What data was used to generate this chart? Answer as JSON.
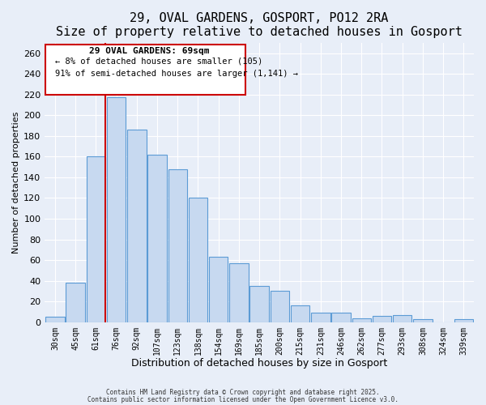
{
  "title": "29, OVAL GARDENS, GOSPORT, PO12 2RA",
  "subtitle": "Size of property relative to detached houses in Gosport",
  "xlabel": "Distribution of detached houses by size in Gosport",
  "ylabel": "Number of detached properties",
  "bar_labels": [
    "30sqm",
    "45sqm",
    "61sqm",
    "76sqm",
    "92sqm",
    "107sqm",
    "123sqm",
    "138sqm",
    "154sqm",
    "169sqm",
    "185sqm",
    "200sqm",
    "215sqm",
    "231sqm",
    "246sqm",
    "262sqm",
    "277sqm",
    "293sqm",
    "308sqm",
    "324sqm",
    "339sqm"
  ],
  "bar_values": [
    5,
    38,
    160,
    217,
    186,
    162,
    148,
    120,
    63,
    57,
    35,
    30,
    16,
    9,
    9,
    4,
    6,
    7,
    3,
    0,
    3
  ],
  "bar_color": "#c7d9f0",
  "bar_edge_color": "#5b9bd5",
  "vline_x_idx": 2,
  "vline_color": "#cc0000",
  "ylim": [
    0,
    270
  ],
  "yticks": [
    0,
    20,
    40,
    60,
    80,
    100,
    120,
    140,
    160,
    180,
    200,
    220,
    240,
    260
  ],
  "annotation_title": "29 OVAL GARDENS: 69sqm",
  "annotation_line1": "← 8% of detached houses are smaller (105)",
  "annotation_line2": "91% of semi-detached houses are larger (1,141) →",
  "annotation_box_color": "#cc0000",
  "footnote1": "Contains HM Land Registry data © Crown copyright and database right 2025.",
  "footnote2": "Contains public sector information licensed under the Open Government Licence v3.0.",
  "background_color": "#e8eef8",
  "grid_color": "#ffffff",
  "title_fontsize": 11,
  "xlabel_fontsize": 9,
  "ylabel_fontsize": 8
}
